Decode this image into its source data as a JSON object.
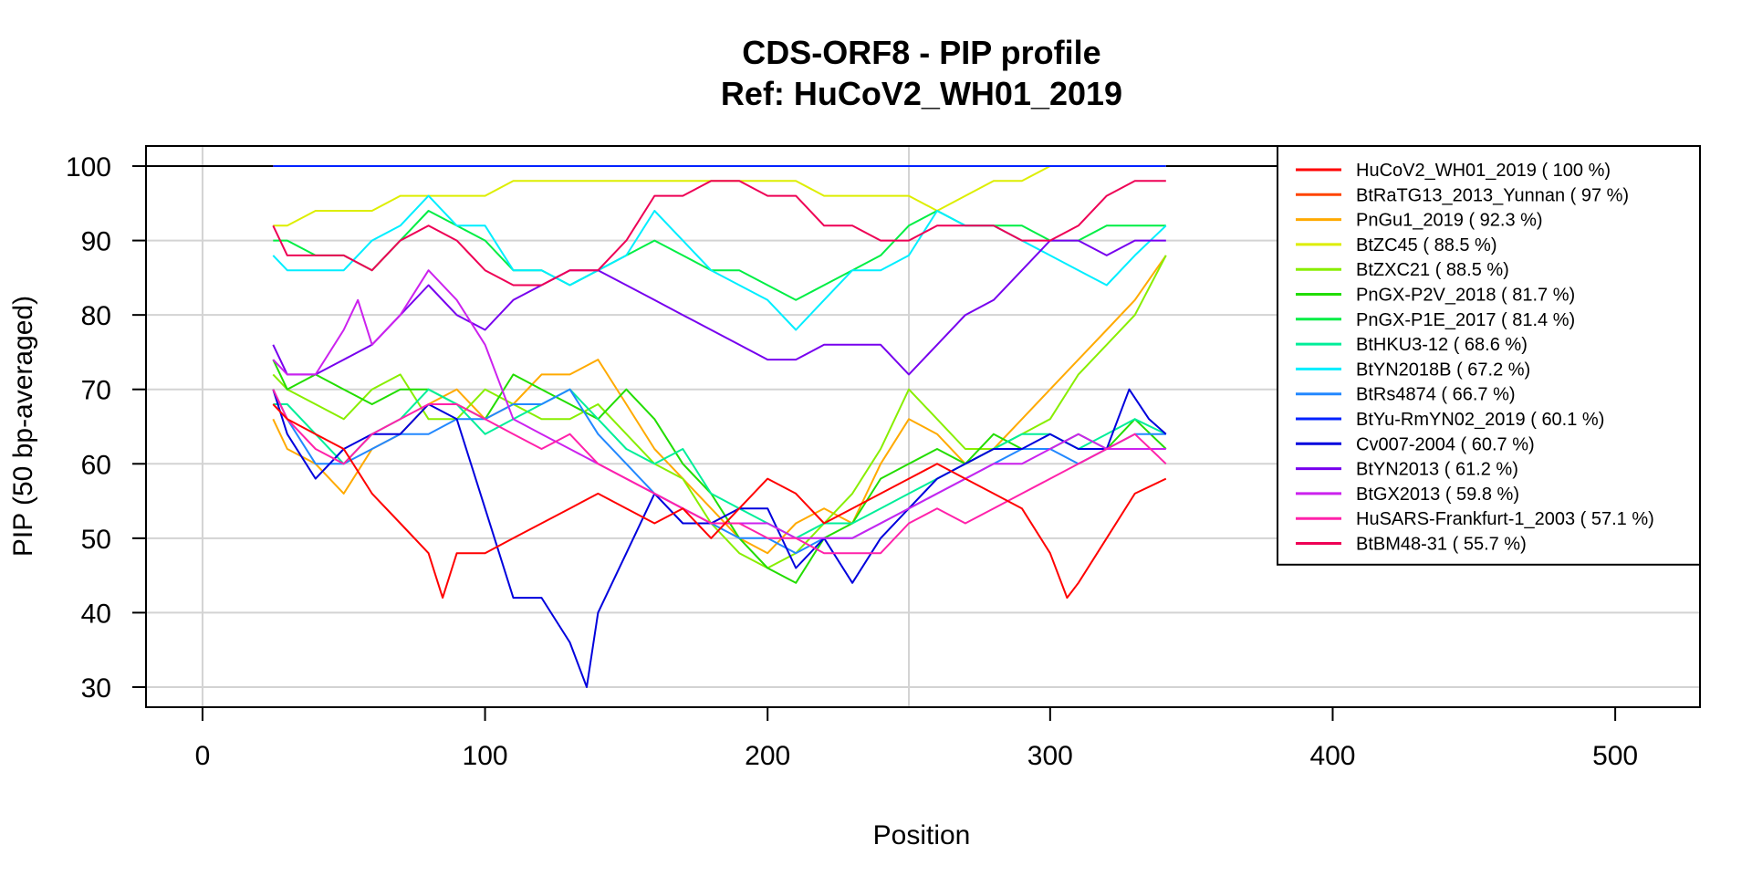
{
  "chart_data": {
    "type": "line",
    "title": "CDS-ORF8 - PIP profile",
    "subtitle": "Ref: HuCoV2_WH01_2019",
    "xlabel": "Position",
    "ylabel": "PIP (50 bp-averaged)",
    "xlim": [
      -20,
      530
    ],
    "ylim": [
      27.3,
      102.7
    ],
    "xticks": [
      0,
      100,
      200,
      300,
      400,
      500
    ],
    "yticks": [
      30,
      40,
      50,
      60,
      70,
      80,
      90,
      100
    ],
    "grid": true,
    "vlines": [
      0,
      250
    ],
    "legend_position": "top-right",
    "series": [
      {
        "name": "HuCoV2_WH01_2019",
        "legend": "HuCoV2_WH01_2019 ( 100 %)",
        "color": "#ff0000",
        "x": [
          25,
          341
        ],
        "y": [
          100,
          100
        ]
      },
      {
        "name": "BtRaTG13_2013_Yunnan",
        "legend": "BtRaTG13_2013_Yunnan ( 97 %)",
        "color": "#ff4400",
        "x": [
          25,
          341
        ],
        "y": [
          100,
          100
        ]
      },
      {
        "name": "PnGu1_2019",
        "legend": "PnGu1_2019 ( 92.3 %)",
        "color": "#ffaa00",
        "x": [
          25,
          30,
          40,
          50,
          60,
          70,
          80,
          90,
          100,
          110,
          120,
          130,
          140,
          150,
          160,
          170,
          180,
          190,
          200,
          210,
          220,
          230,
          240,
          250,
          260,
          270,
          280,
          290,
          300,
          310,
          320,
          330,
          341
        ],
        "y": [
          66,
          62,
          60,
          56,
          62,
          64,
          68,
          70,
          66,
          68,
          72,
          72,
          74,
          68,
          62,
          58,
          54,
          50,
          48,
          52,
          54,
          52,
          60,
          66,
          64,
          60,
          62,
          66,
          70,
          74,
          78,
          82,
          88
        ]
      },
      {
        "name": "BtZC45",
        "legend": "BtZC45 ( 88.5 %)",
        "color": "#ddee00",
        "x": [
          25,
          30,
          40,
          50,
          60,
          70,
          80,
          90,
          100,
          110,
          120,
          130,
          140,
          150,
          160,
          170,
          180,
          190,
          200,
          210,
          220,
          230,
          240,
          250,
          260,
          270,
          280,
          290,
          300,
          310,
          320,
          330,
          341
        ],
        "y": [
          92,
          92,
          94,
          94,
          94,
          96,
          96,
          96,
          96,
          98,
          98,
          98,
          98,
          98,
          98,
          98,
          98,
          98,
          98,
          98,
          96,
          96,
          96,
          96,
          94,
          96,
          98,
          98,
          100,
          100,
          100,
          100,
          100
        ]
      },
      {
        "name": "BtZXC21",
        "legend": "BtZXC21 ( 88.5 %)",
        "color": "#88ee00",
        "x": [
          25,
          30,
          40,
          50,
          60,
          70,
          80,
          90,
          100,
          110,
          120,
          130,
          140,
          150,
          160,
          170,
          180,
          190,
          200,
          210,
          220,
          230,
          240,
          250,
          260,
          270,
          280,
          290,
          300,
          310,
          320,
          330,
          341
        ],
        "y": [
          72,
          70,
          68,
          66,
          70,
          72,
          66,
          66,
          70,
          68,
          66,
          66,
          68,
          64,
          60,
          58,
          52,
          48,
          46,
          48,
          52,
          56,
          62,
          70,
          66,
          62,
          62,
          64,
          66,
          72,
          76,
          80,
          88
        ]
      },
      {
        "name": "PnGX-P2V_2018",
        "legend": "PnGX-P2V_2018 ( 81.7 %)",
        "color": "#22dd00",
        "x": [
          25,
          30,
          40,
          50,
          60,
          70,
          80,
          90,
          100,
          110,
          120,
          130,
          140,
          150,
          160,
          170,
          180,
          190,
          200,
          210,
          220,
          230,
          240,
          250,
          260,
          270,
          280,
          290,
          300,
          310,
          320,
          330,
          341
        ],
        "y": [
          74,
          70,
          72,
          70,
          68,
          70,
          70,
          68,
          66,
          72,
          70,
          68,
          66,
          70,
          66,
          60,
          56,
          50,
          46,
          44,
          50,
          52,
          58,
          60,
          62,
          60,
          64,
          62,
          62,
          64,
          62,
          66,
          62
        ]
      },
      {
        "name": "PnGX-P1E_2017",
        "legend": "PnGX-P1E_2017 ( 81.4 %)",
        "color": "#00ee44",
        "x": [
          25,
          30,
          40,
          50,
          60,
          70,
          80,
          90,
          100,
          110,
          120,
          130,
          140,
          150,
          160,
          170,
          180,
          190,
          200,
          210,
          220,
          230,
          240,
          250,
          260,
          270,
          280,
          290,
          300,
          310,
          320,
          330,
          341
        ],
        "y": [
          90,
          90,
          88,
          88,
          86,
          90,
          94,
          92,
          90,
          86,
          86,
          84,
          86,
          88,
          90,
          88,
          86,
          86,
          84,
          82,
          84,
          86,
          88,
          92,
          94,
          92,
          92,
          92,
          90,
          90,
          92,
          92,
          92
        ]
      },
      {
        "name": "BtHKU3-12",
        "legend": "BtHKU3-12 ( 68.6 %)",
        "color": "#00ee99",
        "x": [
          25,
          30,
          40,
          50,
          60,
          70,
          80,
          90,
          100,
          110,
          120,
          130,
          140,
          150,
          160,
          170,
          180,
          190,
          200,
          210,
          220,
          230,
          240,
          250,
          260,
          270,
          280,
          290,
          300,
          310,
          320,
          330,
          341
        ],
        "y": [
          68,
          68,
          64,
          60,
          64,
          66,
          70,
          68,
          64,
          66,
          68,
          70,
          66,
          62,
          60,
          62,
          56,
          54,
          52,
          50,
          52,
          52,
          54,
          56,
          58,
          60,
          62,
          64,
          64,
          62,
          64,
          66,
          64
        ]
      },
      {
        "name": "BtYN2018B",
        "legend": "BtYN2018B ( 67.2 %)",
        "color": "#00eeff",
        "x": [
          25,
          30,
          40,
          50,
          60,
          70,
          80,
          90,
          100,
          110,
          120,
          130,
          140,
          150,
          160,
          170,
          180,
          190,
          200,
          210,
          220,
          230,
          240,
          250,
          260,
          270,
          280,
          290,
          300,
          310,
          320,
          330,
          341
        ],
        "y": [
          88,
          86,
          86,
          86,
          90,
          92,
          96,
          92,
          92,
          86,
          86,
          84,
          86,
          88,
          94,
          90,
          86,
          84,
          82,
          78,
          82,
          86,
          86,
          88,
          94,
          92,
          92,
          90,
          88,
          86,
          84,
          88,
          92
        ]
      },
      {
        "name": "BtRs4874",
        "legend": "BtRs4874 ( 66.7 %)",
        "color": "#2288ff",
        "x": [
          25,
          30,
          40,
          50,
          60,
          70,
          80,
          90,
          100,
          110,
          120,
          130,
          140,
          150,
          160,
          170,
          180,
          190,
          200,
          210,
          220,
          230,
          240,
          250,
          260,
          270,
          280,
          290,
          300,
          310,
          320,
          330,
          341
        ],
        "y": [
          70,
          66,
          60,
          60,
          62,
          64,
          64,
          66,
          66,
          68,
          68,
          70,
          64,
          60,
          56,
          54,
          52,
          50,
          50,
          48,
          50,
          50,
          52,
          54,
          56,
          58,
          60,
          62,
          62,
          60,
          62,
          64,
          64
        ]
      },
      {
        "name": "BtYu-RmYN02_2019",
        "legend": "BtYu-RmYN02_2019 ( 60.1 %)",
        "color": "#0022ff",
        "x": [
          25,
          341
        ],
        "y": [
          100,
          100
        ]
      },
      {
        "name": "Cv007-2004",
        "legend": "Cv007-2004 ( 60.7 %)",
        "color": "#0000dd",
        "x": [
          25,
          30,
          40,
          50,
          60,
          70,
          80,
          90,
          100,
          110,
          120,
          130,
          136,
          140,
          150,
          160,
          170,
          180,
          190,
          200,
          210,
          220,
          230,
          240,
          250,
          260,
          270,
          280,
          290,
          300,
          310,
          320,
          328,
          335,
          341
        ],
        "y": [
          70,
          64,
          58,
          62,
          64,
          64,
          68,
          66,
          54,
          42,
          42,
          36,
          30,
          40,
          48,
          56,
          52,
          52,
          54,
          54,
          46,
          50,
          44,
          50,
          54,
          58,
          60,
          62,
          62,
          64,
          62,
          62,
          70,
          66,
          64
        ]
      },
      {
        "name": "BtYN2013",
        "legend": "BtYN2013 ( 61.2 %)",
        "color": "#7700ee",
        "x": [
          25,
          30,
          40,
          50,
          60,
          70,
          80,
          90,
          100,
          110,
          120,
          130,
          140,
          150,
          160,
          170,
          180,
          190,
          200,
          210,
          220,
          230,
          240,
          250,
          260,
          270,
          280,
          290,
          300,
          310,
          320,
          330,
          341
        ],
        "y": [
          76,
          72,
          72,
          74,
          76,
          80,
          84,
          80,
          78,
          82,
          84,
          86,
          86,
          84,
          82,
          80,
          78,
          76,
          74,
          74,
          76,
          76,
          76,
          72,
          76,
          80,
          82,
          86,
          90,
          90,
          88,
          90,
          90
        ]
      },
      {
        "name": "BtGX2013",
        "legend": "BtGX2013 ( 59.8 %)",
        "color": "#cc22ee",
        "x": [
          25,
          30,
          40,
          50,
          55,
          60,
          70,
          80,
          90,
          100,
          110,
          120,
          130,
          140,
          150,
          160,
          170,
          180,
          190,
          200,
          210,
          220,
          230,
          240,
          250,
          260,
          270,
          280,
          290,
          300,
          310,
          320,
          330,
          341
        ],
        "y": [
          74,
          72,
          72,
          78,
          82,
          76,
          80,
          86,
          82,
          76,
          66,
          64,
          62,
          60,
          58,
          56,
          54,
          52,
          52,
          52,
          50,
          50,
          50,
          52,
          54,
          56,
          58,
          60,
          60,
          62,
          64,
          62,
          62,
          62
        ]
      },
      {
        "name": "HuSARS-Frankfurt-1_2003",
        "legend": "HuSARS-Frankfurt-1_2003 ( 57.1 %)",
        "color": "#ff22aa",
        "x": [
          25,
          30,
          40,
          50,
          60,
          70,
          80,
          90,
          100,
          110,
          120,
          130,
          140,
          150,
          160,
          170,
          180,
          190,
          200,
          210,
          220,
          230,
          240,
          250,
          260,
          270,
          280,
          290,
          300,
          310,
          320,
          330,
          341
        ],
        "y": [
          70,
          66,
          62,
          60,
          64,
          66,
          68,
          68,
          66,
          64,
          62,
          64,
          60,
          58,
          56,
          54,
          52,
          52,
          50,
          50,
          48,
          48,
          48,
          52,
          54,
          52,
          54,
          56,
          58,
          60,
          62,
          64,
          60
        ]
      },
      {
        "name": "BtBM48-31",
        "legend": "BtBM48-31 ( 55.7 %)",
        "color": "#ee0055",
        "x": [
          25,
          30,
          40,
          50,
          60,
          70,
          80,
          90,
          100,
          110,
          120,
          130,
          140,
          150,
          160,
          170,
          180,
          190,
          200,
          210,
          220,
          230,
          240,
          250,
          260,
          270,
          280,
          290,
          300,
          310,
          320,
          330,
          341
        ],
        "y": [
          92,
          88,
          88,
          88,
          86,
          90,
          92,
          90,
          86,
          84,
          84,
          86,
          86,
          90,
          96,
          96,
          98,
          98,
          96,
          96,
          92,
          92,
          90,
          90,
          92,
          92,
          92,
          90,
          90,
          92,
          96,
          98,
          98
        ]
      },
      {
        "name": "HuCoV2_WH01_2019-lower",
        "legend": "",
        "color": "#ff0000",
        "x": [
          25,
          30,
          40,
          50,
          60,
          70,
          80,
          85,
          90,
          100,
          110,
          120,
          130,
          140,
          150,
          160,
          170,
          180,
          190,
          200,
          210,
          220,
          230,
          240,
          250,
          260,
          270,
          280,
          290,
          300,
          306,
          310,
          320,
          330,
          341
        ],
        "y": [
          68,
          66,
          64,
          62,
          56,
          52,
          48,
          42,
          48,
          48,
          50,
          52,
          54,
          56,
          54,
          52,
          54,
          50,
          54,
          58,
          56,
          52,
          54,
          56,
          58,
          60,
          58,
          56,
          54,
          48,
          42,
          44,
          50,
          56,
          58
        ]
      }
    ]
  }
}
